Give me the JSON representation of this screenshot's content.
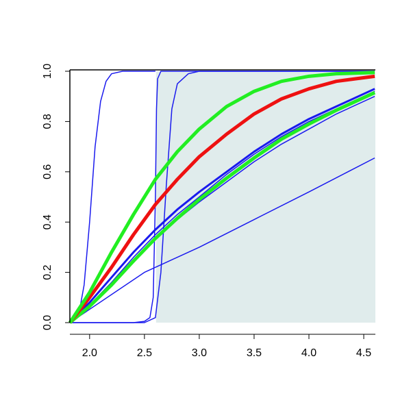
{
  "chart_data": {
    "type": "line",
    "xlim": [
      1.82,
      4.606
    ],
    "ylim": [
      0,
      1
    ],
    "xticks": [
      {
        "value": 2,
        "label": "2.0"
      },
      2.5,
      {
        "value": 3,
        "label": "3.0"
      },
      3.5,
      {
        "value": 4,
        "label": "4.0"
      },
      4.5
    ],
    "yticks": [
      {
        "value": 0,
        "label": "0.0"
      },
      0.2,
      0.4,
      0.6,
      0.8,
      {
        "value": 1,
        "label": "1.0"
      }
    ],
    "shade": {
      "x0": 2.606,
      "color": "#e0ecec"
    },
    "series": [
      {
        "color": "#1a1aee",
        "width": 1.5,
        "x": [
          1.82,
          1.9,
          1.95,
          2.0,
          2.05,
          2.1,
          2.15,
          2.2,
          2.3,
          2.6
        ],
        "values": [
          0,
          0.03,
          0.15,
          0.4,
          0.7,
          0.88,
          0.96,
          0.99,
          1,
          1
        ]
      },
      {
        "color": "#1a1aee",
        "width": 1.5,
        "x": [
          1.82,
          2.4,
          2.5,
          2.55,
          2.58,
          2.6,
          2.61,
          2.62,
          2.65,
          4.6
        ],
        "values": [
          0,
          0,
          0.005,
          0.02,
          0.1,
          0.5,
          0.85,
          0.97,
          1,
          1
        ]
      },
      {
        "color": "#1a1aee",
        "width": 1.5,
        "x": [
          1.82,
          2.5,
          2.6,
          2.65,
          2.7,
          2.75,
          2.8,
          2.9,
          3.0,
          4.6
        ],
        "values": [
          0,
          0,
          0.02,
          0.2,
          0.55,
          0.85,
          0.95,
          0.99,
          1,
          1
        ]
      },
      {
        "color": "#1a1aee",
        "width": 1.5,
        "x": [
          1.82,
          2.5,
          3.0,
          3.5,
          4.0,
          4.6
        ],
        "values": [
          0,
          0.2,
          0.3,
          0.41,
          0.52,
          0.655
        ]
      },
      {
        "color": "#1a1aee",
        "width": 1.5,
        "x": [
          1.82,
          2.0,
          2.2,
          2.4,
          2.6,
          2.8,
          3.0,
          3.25,
          3.5,
          3.75,
          4.0,
          4.25,
          4.6
        ],
        "values": [
          0,
          0.06,
          0.15,
          0.24,
          0.33,
          0.41,
          0.48,
          0.56,
          0.64,
          0.71,
          0.77,
          0.83,
          0.9
        ]
      },
      {
        "color": "#1a1aee",
        "width": 1.5,
        "x": [
          1.82,
          2.0,
          2.2,
          2.4,
          2.6,
          2.8,
          3.0,
          3.25,
          3.5,
          3.75,
          4.0,
          4.25,
          4.6
        ],
        "values": [
          0,
          0.07,
          0.16,
          0.26,
          0.35,
          0.43,
          0.5,
          0.59,
          0.67,
          0.74,
          0.8,
          0.85,
          0.92
        ]
      },
      {
        "color": "#1a1aee",
        "width": 3,
        "x": [
          1.82,
          2.0,
          2.2,
          2.4,
          2.6,
          2.8,
          3.0,
          3.25,
          3.5,
          3.75,
          4.0,
          4.25,
          4.6
        ],
        "values": [
          0,
          0.08,
          0.18,
          0.28,
          0.37,
          0.45,
          0.52,
          0.6,
          0.68,
          0.75,
          0.81,
          0.86,
          0.93
        ]
      },
      {
        "color": "#22ee22",
        "width": 5,
        "x": [
          1.82,
          2.0,
          2.2,
          2.4,
          2.6,
          2.8,
          3.0,
          3.25,
          3.5,
          3.75,
          4.0,
          4.25,
          4.6
        ],
        "values": [
          0,
          0.065,
          0.15,
          0.245,
          0.335,
          0.415,
          0.49,
          0.575,
          0.655,
          0.73,
          0.79,
          0.845,
          0.915
        ]
      },
      {
        "color": "#ee1111",
        "width": 5,
        "x": [
          1.82,
          2.0,
          2.2,
          2.4,
          2.6,
          2.8,
          3.0,
          3.25,
          3.5,
          3.75,
          4.0,
          4.25,
          4.6
        ],
        "values": [
          0,
          0.1,
          0.22,
          0.35,
          0.47,
          0.57,
          0.66,
          0.75,
          0.83,
          0.89,
          0.93,
          0.96,
          0.98
        ]
      },
      {
        "color": "#22ee22",
        "width": 5,
        "x": [
          1.82,
          2.0,
          2.2,
          2.4,
          2.6,
          2.8,
          3.0,
          3.25,
          3.5,
          3.75,
          4.0,
          4.25,
          4.6
        ],
        "values": [
          0,
          0.12,
          0.28,
          0.43,
          0.57,
          0.68,
          0.77,
          0.86,
          0.92,
          0.96,
          0.98,
          0.99,
          0.995
        ]
      }
    ]
  }
}
